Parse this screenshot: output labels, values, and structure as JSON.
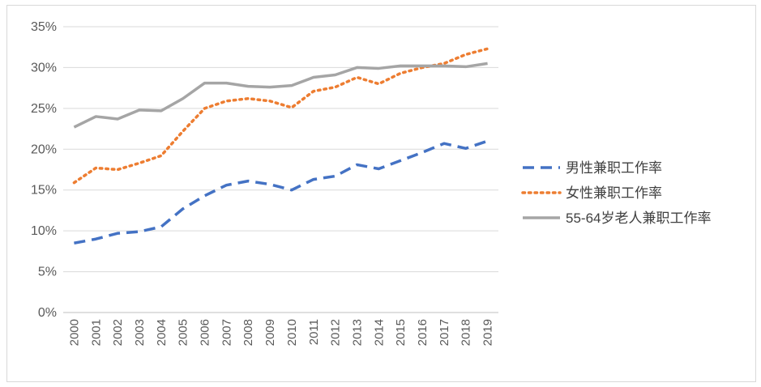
{
  "chart_data": {
    "type": "line",
    "title": "",
    "xlabel": "",
    "ylabel": "",
    "categories": [
      "2000",
      "2001",
      "2002",
      "2003",
      "2004",
      "2005",
      "2006",
      "2007",
      "2008",
      "2009",
      "2010",
      "2011",
      "2012",
      "2013",
      "2014",
      "2015",
      "2016",
      "2017",
      "2018",
      "2019"
    ],
    "ylim": [
      0,
      35
    ],
    "yticks": [
      "0%",
      "5%",
      "10%",
      "15%",
      "20%",
      "25%",
      "30%",
      "35%"
    ],
    "grid": true,
    "legend_position": "right",
    "series": [
      {
        "name": "男性兼职工作率",
        "color": "#4472c4",
        "style": "dashed",
        "values": [
          8.5,
          9.0,
          9.7,
          9.9,
          10.5,
          12.7,
          14.3,
          15.6,
          16.1,
          15.7,
          15.0,
          16.3,
          16.7,
          18.1,
          17.6,
          18.6,
          19.6,
          20.7,
          20.1,
          21.0
        ]
      },
      {
        "name": "女性兼职工作率",
        "color": "#ed7d31",
        "style": "dotted",
        "values": [
          15.9,
          17.7,
          17.5,
          18.3,
          19.2,
          22.2,
          25.0,
          25.9,
          26.2,
          25.9,
          25.1,
          27.1,
          27.6,
          28.8,
          28.0,
          29.3,
          30.0,
          30.5,
          31.6,
          32.3
        ]
      },
      {
        "name": "55-64岁老人兼职工作率",
        "color": "#a5a5a5",
        "style": "solid",
        "values": [
          22.7,
          24.0,
          23.7,
          24.8,
          24.7,
          26.2,
          28.1,
          28.1,
          27.7,
          27.6,
          27.8,
          28.8,
          29.1,
          30.0,
          29.9,
          30.2,
          30.2,
          30.2,
          30.1,
          30.5
        ]
      }
    ]
  }
}
